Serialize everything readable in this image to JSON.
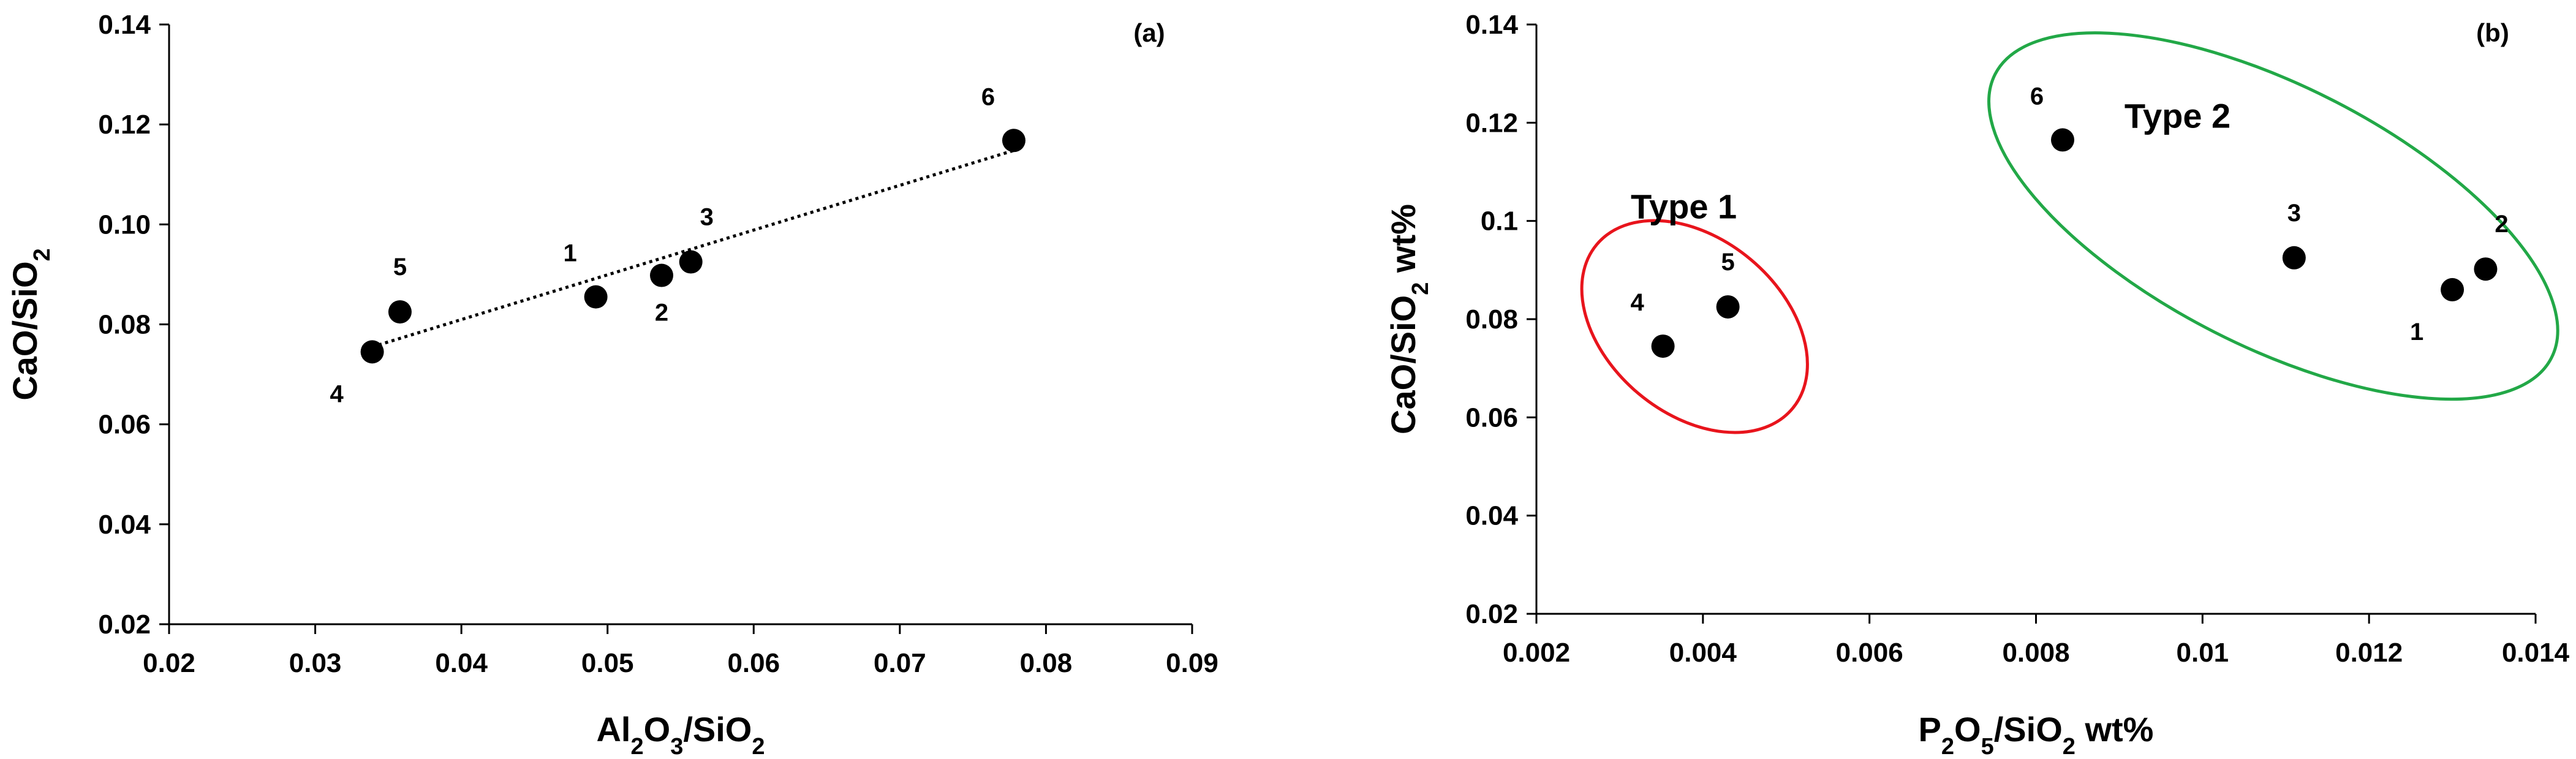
{
  "chart_data": [
    {
      "type": "scatter",
      "panel_label": "(a)",
      "xlabel": "Al2O3/SiO2",
      "xlabel_parts": [
        {
          "t": "Al"
        },
        {
          "t": "2",
          "sub": true
        },
        {
          "t": "O"
        },
        {
          "t": "3",
          "sub": true
        },
        {
          "t": "/SiO"
        },
        {
          "t": "2",
          "sub": true
        }
      ],
      "ylabel": "CaO/SiO2",
      "ylabel_parts": [
        {
          "t": "CaO/SiO"
        },
        {
          "t": "2",
          "sub": true
        }
      ],
      "xlim": [
        0.02,
        0.09
      ],
      "ylim": [
        0.02,
        0.14
      ],
      "xticks": [
        0.02,
        0.03,
        0.04,
        0.05,
        0.06,
        0.07,
        0.08,
        0.09
      ],
      "xtick_labels": [
        "0.02",
        "0.03",
        "0.04",
        "0.05",
        "0.06",
        "0.07",
        "0.08",
        "0.09"
      ],
      "yticks": [
        0.02,
        0.04,
        0.06,
        0.08,
        0.1,
        0.12,
        0.14
      ],
      "ytick_labels": [
        "0.02",
        "0.04",
        "0.06",
        "0.08",
        "0.10",
        "0.12",
        "0.14"
      ],
      "grid": false,
      "points": [
        {
          "label": "1",
          "x": 0.0492,
          "y": 0.0855,
          "label_pos": "upper-left"
        },
        {
          "label": "2",
          "x": 0.0537,
          "y": 0.0898,
          "label_pos": "below"
        },
        {
          "label": "3",
          "x": 0.0557,
          "y": 0.0925,
          "label_pos": "upper-right"
        },
        {
          "label": "4",
          "x": 0.0339,
          "y": 0.0745,
          "label_pos": "lower-left"
        },
        {
          "label": "5",
          "x": 0.0358,
          "y": 0.0825,
          "label_pos": "above"
        },
        {
          "label": "6",
          "x": 0.0778,
          "y": 0.1168,
          "label_pos": "upper-left"
        }
      ],
      "trendline": {
        "style": "dotted",
        "x": [
          0.0339,
          0.0778
        ],
        "y": [
          0.0755,
          0.1148
        ]
      }
    },
    {
      "type": "scatter",
      "panel_label": "(b)",
      "xlabel": "P2O5/SiO2 wt%",
      "xlabel_parts": [
        {
          "t": "P"
        },
        {
          "t": "2",
          "sub": true
        },
        {
          "t": "O"
        },
        {
          "t": "5",
          "sub": true
        },
        {
          "t": "/SiO"
        },
        {
          "t": "2",
          "sub": true
        },
        {
          "t": " wt%"
        }
      ],
      "ylabel": "CaO/SiO2 wt%",
      "ylabel_parts": [
        {
          "t": "CaO/SiO"
        },
        {
          "t": "2",
          "sub": true
        },
        {
          "t": " wt%"
        }
      ],
      "xlim": [
        0.002,
        0.014
      ],
      "ylim": [
        0.02,
        0.14
      ],
      "xticks": [
        0.002,
        0.004,
        0.006,
        0.008,
        0.01,
        0.012,
        0.014
      ],
      "xtick_labels": [
        "0.002",
        "0.004",
        "0.006",
        "0.008",
        "0.01",
        "0.012",
        "0.014"
      ],
      "yticks": [
        0.02,
        0.04,
        0.06,
        0.08,
        0.1,
        0.12,
        0.14
      ],
      "ytick_labels": [
        "0.02",
        "0.04",
        "0.06",
        "0.08",
        "0.1",
        "0.12",
        "0.14"
      ],
      "grid": false,
      "points": [
        {
          "label": "1",
          "x": 0.013,
          "y": 0.086,
          "label_pos": "lower-left"
        },
        {
          "label": "2",
          "x": 0.0134,
          "y": 0.0902,
          "label_pos": "upper-right"
        },
        {
          "label": "3",
          "x": 0.0111,
          "y": 0.0925,
          "label_pos": "above"
        },
        {
          "label": "4",
          "x": 0.00352,
          "y": 0.0745,
          "label_pos": "upper-left"
        },
        {
          "label": "5",
          "x": 0.0043,
          "y": 0.0825,
          "label_pos": "above"
        },
        {
          "label": "6",
          "x": 0.00832,
          "y": 0.1165,
          "label_pos": "upper-left"
        }
      ],
      "groups": [
        {
          "name": "Type 1",
          "color": "#e8141c",
          "center": [
            0.0039,
            0.0785
          ],
          "rx_data": 0.00105,
          "ry_data": 0.026,
          "tilt_deg": -50,
          "label_at": [
            0.00377,
            0.1005
          ]
        },
        {
          "name": "Type 2",
          "color": "#22a847",
          "center": [
            0.01085,
            0.101
          ],
          "rx_data": 0.00375,
          "ry_data": 0.0265,
          "tilt_deg": 27,
          "label_at": [
            0.0097,
            0.119
          ]
        }
      ]
    }
  ],
  "colors": {
    "marker": "#000000",
    "axis": "#000000",
    "trendline": "#000000"
  }
}
